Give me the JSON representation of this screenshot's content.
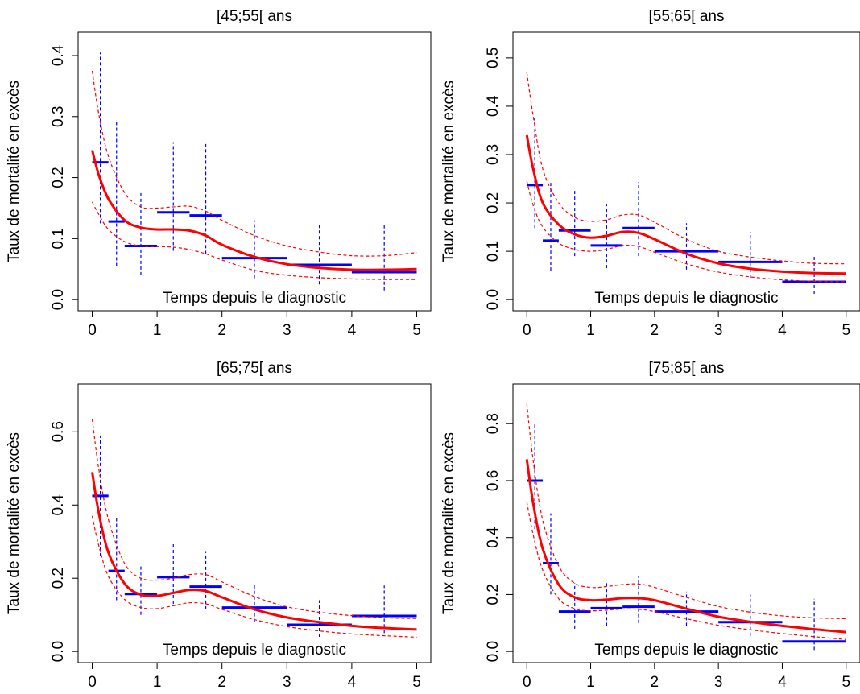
{
  "chart_data": [
    {
      "type": "line",
      "title": "[45;55[ ans",
      "ylabel": "Taux de mortalité en excès",
      "xlabel": "Temps depuis le diagnostic",
      "xlim": [
        0,
        5
      ],
      "ylim": [
        0,
        0.42
      ],
      "xticks": [
        0,
        1,
        2,
        3,
        4,
        5
      ],
      "yticks": [
        0.0,
        0.1,
        0.2,
        0.3,
        0.4
      ],
      "ytick_labels": [
        "0.0",
        "0.1",
        "0.2",
        "0.3",
        "0.4"
      ],
      "fit": {
        "x": [
          0,
          0.1,
          0.25,
          0.5,
          0.75,
          1,
          1.25,
          1.5,
          1.75,
          2,
          2.5,
          3,
          3.5,
          4,
          4.5,
          5
        ],
        "y": [
          0.245,
          0.205,
          0.165,
          0.13,
          0.118,
          0.115,
          0.115,
          0.113,
          0.105,
          0.09,
          0.07,
          0.058,
          0.052,
          0.049,
          0.049,
          0.05
        ]
      },
      "ci_upper": {
        "x": [
          0,
          0.1,
          0.25,
          0.5,
          0.75,
          1,
          1.25,
          1.5,
          1.75,
          2,
          2.5,
          3,
          3.5,
          4,
          4.5,
          5
        ],
        "y": [
          0.375,
          0.305,
          0.235,
          0.175,
          0.152,
          0.15,
          0.152,
          0.153,
          0.145,
          0.13,
          0.105,
          0.088,
          0.078,
          0.072,
          0.072,
          0.077
        ]
      },
      "ci_lower": {
        "x": [
          0,
          0.1,
          0.25,
          0.5,
          0.75,
          1,
          1.25,
          1.5,
          1.75,
          2,
          2.5,
          3,
          3.5,
          4,
          4.5,
          5
        ],
        "y": [
          0.16,
          0.14,
          0.115,
          0.095,
          0.088,
          0.087,
          0.086,
          0.082,
          0.075,
          0.065,
          0.048,
          0.04,
          0.036,
          0.034,
          0.033,
          0.033
        ]
      },
      "intervals": [
        {
          "x0": 0,
          "x1": 0.25,
          "xmid": 0.125,
          "y": 0.225,
          "lo": 0.125,
          "hi": 0.405
        },
        {
          "x0": 0.25,
          "x1": 0.5,
          "xmid": 0.375,
          "y": 0.128,
          "lo": 0.055,
          "hi": 0.295
        },
        {
          "x0": 0.5,
          "x1": 1,
          "xmid": 0.75,
          "y": 0.088,
          "lo": 0.04,
          "hi": 0.178
        },
        {
          "x0": 1,
          "x1": 1.5,
          "xmid": 1.25,
          "y": 0.143,
          "lo": 0.08,
          "hi": 0.258
        },
        {
          "x0": 1.5,
          "x1": 2,
          "xmid": 1.75,
          "y": 0.138,
          "lo": 0.075,
          "hi": 0.255
        },
        {
          "x0": 2,
          "x1": 3,
          "xmid": 2.5,
          "y": 0.068,
          "lo": 0.035,
          "hi": 0.13
        },
        {
          "x0": 3,
          "x1": 4,
          "xmid": 3.5,
          "y": 0.057,
          "lo": 0.025,
          "hi": 0.125
        },
        {
          "x0": 4,
          "x1": 5,
          "xmid": 4.5,
          "y": 0.045,
          "lo": 0.015,
          "hi": 0.122
        }
      ]
    },
    {
      "type": "line",
      "title": "[55;65[ ans",
      "ylabel": "Taux de mortalité en excès",
      "xlabel": "Temps depuis le diagnostic",
      "xlim": [
        0,
        5
      ],
      "ylim": [
        0,
        0.53
      ],
      "xticks": [
        0,
        1,
        2,
        3,
        4,
        5
      ],
      "yticks": [
        0.0,
        0.1,
        0.2,
        0.3,
        0.4,
        0.5
      ],
      "ytick_labels": [
        "0.0",
        "0.1",
        "0.2",
        "0.3",
        "0.4",
        "0.5"
      ],
      "fit": {
        "x": [
          0,
          0.1,
          0.25,
          0.5,
          0.75,
          1,
          1.25,
          1.5,
          1.75,
          2,
          2.5,
          3,
          3.5,
          4,
          4.5,
          5
        ],
        "y": [
          0.34,
          0.27,
          0.2,
          0.155,
          0.135,
          0.128,
          0.132,
          0.14,
          0.138,
          0.125,
          0.095,
          0.075,
          0.064,
          0.058,
          0.055,
          0.054
        ]
      },
      "ci_upper": {
        "x": [
          0,
          0.1,
          0.25,
          0.5,
          0.75,
          1,
          1.25,
          1.5,
          1.75,
          2,
          2.5,
          3,
          3.5,
          4,
          4.5,
          5
        ],
        "y": [
          0.47,
          0.38,
          0.27,
          0.2,
          0.17,
          0.162,
          0.165,
          0.175,
          0.175,
          0.16,
          0.125,
          0.1,
          0.088,
          0.08,
          0.075,
          0.074
        ]
      },
      "ci_lower": {
        "x": [
          0,
          0.1,
          0.25,
          0.5,
          0.75,
          1,
          1.25,
          1.5,
          1.75,
          2,
          2.5,
          3,
          3.5,
          4,
          4.5,
          5
        ],
        "y": [
          0.245,
          0.195,
          0.15,
          0.117,
          0.104,
          0.1,
          0.104,
          0.112,
          0.11,
          0.098,
          0.074,
          0.057,
          0.047,
          0.041,
          0.038,
          0.037
        ]
      },
      "intervals": [
        {
          "x0": 0,
          "x1": 0.25,
          "xmid": 0.125,
          "y": 0.237,
          "lo": 0.148,
          "hi": 0.38
        },
        {
          "x0": 0.25,
          "x1": 0.5,
          "xmid": 0.375,
          "y": 0.122,
          "lo": 0.06,
          "hi": 0.245
        },
        {
          "x0": 0.5,
          "x1": 1,
          "xmid": 0.75,
          "y": 0.143,
          "lo": 0.09,
          "hi": 0.225
        },
        {
          "x0": 1,
          "x1": 1.5,
          "xmid": 1.25,
          "y": 0.112,
          "lo": 0.065,
          "hi": 0.198
        },
        {
          "x0": 1.5,
          "x1": 2,
          "xmid": 1.75,
          "y": 0.148,
          "lo": 0.09,
          "hi": 0.243
        },
        {
          "x0": 2,
          "x1": 3,
          "xmid": 2.5,
          "y": 0.1,
          "lo": 0.062,
          "hi": 0.158
        },
        {
          "x0": 3,
          "x1": 4,
          "xmid": 3.5,
          "y": 0.078,
          "lo": 0.045,
          "hi": 0.14
        },
        {
          "x0": 4,
          "x1": 5,
          "xmid": 4.5,
          "y": 0.037,
          "lo": 0.012,
          "hi": 0.095
        }
      ]
    },
    {
      "type": "line",
      "title": "[65;75[ ans",
      "ylabel": "Taux de mortalité en excès",
      "xlabel": "Temps depuis le diagnostic",
      "xlim": [
        0,
        5
      ],
      "ylim": [
        0,
        0.7
      ],
      "xticks": [
        0,
        1,
        2,
        3,
        4,
        5
      ],
      "yticks": [
        0.0,
        0.2,
        0.4,
        0.6
      ],
      "ytick_labels": [
        "0.0",
        "0.2",
        "0.4",
        "0.6"
      ],
      "fit": {
        "x": [
          0,
          0.1,
          0.25,
          0.5,
          0.75,
          1,
          1.25,
          1.5,
          1.75,
          2,
          2.5,
          3,
          3.5,
          4,
          4.5,
          5
        ],
        "y": [
          0.49,
          0.38,
          0.27,
          0.185,
          0.155,
          0.152,
          0.16,
          0.168,
          0.165,
          0.148,
          0.115,
          0.093,
          0.08,
          0.07,
          0.064,
          0.06
        ]
      },
      "ci_upper": {
        "x": [
          0,
          0.1,
          0.25,
          0.5,
          0.75,
          1,
          1.25,
          1.5,
          1.75,
          2,
          2.5,
          3,
          3.5,
          4,
          4.5,
          5
        ],
        "y": [
          0.635,
          0.5,
          0.36,
          0.24,
          0.2,
          0.195,
          0.2,
          0.21,
          0.21,
          0.19,
          0.15,
          0.122,
          0.107,
          0.098,
          0.092,
          0.09
        ]
      },
      "ci_lower": {
        "x": [
          0,
          0.1,
          0.25,
          0.5,
          0.75,
          1,
          1.25,
          1.5,
          1.75,
          2,
          2.5,
          3,
          3.5,
          4,
          4.5,
          5
        ],
        "y": [
          0.37,
          0.29,
          0.205,
          0.142,
          0.12,
          0.117,
          0.125,
          0.133,
          0.13,
          0.115,
          0.087,
          0.068,
          0.056,
          0.048,
          0.043,
          0.039
        ]
      },
      "intervals": [
        {
          "x0": 0,
          "x1": 0.25,
          "xmid": 0.125,
          "y": 0.425,
          "lo": 0.26,
          "hi": 0.59
        },
        {
          "x0": 0.25,
          "x1": 0.5,
          "xmid": 0.375,
          "y": 0.22,
          "lo": 0.14,
          "hi": 0.365
        },
        {
          "x0": 0.5,
          "x1": 1,
          "xmid": 0.75,
          "y": 0.157,
          "lo": 0.1,
          "hi": 0.238
        },
        {
          "x0": 1,
          "x1": 1.5,
          "xmid": 1.25,
          "y": 0.203,
          "lo": 0.13,
          "hi": 0.295
        },
        {
          "x0": 1.5,
          "x1": 2,
          "xmid": 1.75,
          "y": 0.177,
          "lo": 0.115,
          "hi": 0.272
        },
        {
          "x0": 2,
          "x1": 3,
          "xmid": 2.5,
          "y": 0.12,
          "lo": 0.08,
          "hi": 0.185
        },
        {
          "x0": 3,
          "x1": 4,
          "xmid": 3.5,
          "y": 0.073,
          "lo": 0.04,
          "hi": 0.14
        },
        {
          "x0": 4,
          "x1": 5,
          "xmid": 4.5,
          "y": 0.097,
          "lo": 0.05,
          "hi": 0.18
        }
      ]
    },
    {
      "type": "line",
      "title": "[75;85[ ans",
      "ylabel": "Taux de mortalité en excès",
      "xlabel": "Temps depuis le diagnostic",
      "xlim": [
        0,
        5
      ],
      "ylim": [
        0,
        0.9
      ],
      "xticks": [
        0,
        1,
        2,
        3,
        4,
        5
      ],
      "yticks": [
        0.0,
        0.2,
        0.4,
        0.6,
        0.8
      ],
      "ytick_labels": [
        "0.0",
        "0.2",
        "0.4",
        "0.6",
        "0.8"
      ],
      "fit": {
        "x": [
          0,
          0.1,
          0.25,
          0.5,
          0.75,
          1,
          1.25,
          1.5,
          1.75,
          2,
          2.5,
          3,
          3.5,
          4,
          4.5,
          5
        ],
        "y": [
          0.675,
          0.52,
          0.36,
          0.235,
          0.19,
          0.18,
          0.182,
          0.187,
          0.187,
          0.18,
          0.15,
          0.122,
          0.104,
          0.09,
          0.078,
          0.068
        ]
      },
      "ci_upper": {
        "x": [
          0,
          0.1,
          0.25,
          0.5,
          0.75,
          1,
          1.25,
          1.5,
          1.75,
          2,
          2.5,
          3,
          3.5,
          4,
          4.5,
          5
        ],
        "y": [
          0.87,
          0.67,
          0.46,
          0.3,
          0.24,
          0.225,
          0.228,
          0.235,
          0.237,
          0.225,
          0.19,
          0.158,
          0.138,
          0.125,
          0.118,
          0.115
        ]
      },
      "ci_lower": {
        "x": [
          0,
          0.1,
          0.25,
          0.5,
          0.75,
          1,
          1.25,
          1.5,
          1.75,
          2,
          2.5,
          3,
          3.5,
          4,
          4.5,
          5
        ],
        "y": [
          0.525,
          0.41,
          0.285,
          0.185,
          0.15,
          0.143,
          0.145,
          0.149,
          0.148,
          0.14,
          0.115,
          0.092,
          0.076,
          0.063,
          0.052,
          0.042
        ]
      },
      "intervals": [
        {
          "x0": 0,
          "x1": 0.25,
          "xmid": 0.125,
          "y": 0.6,
          "lo": 0.43,
          "hi": 0.8
        },
        {
          "x0": 0.25,
          "x1": 0.5,
          "xmid": 0.375,
          "y": 0.31,
          "lo": 0.2,
          "hi": 0.485
        },
        {
          "x0": 0.5,
          "x1": 1,
          "xmid": 0.75,
          "y": 0.14,
          "lo": 0.08,
          "hi": 0.24
        },
        {
          "x0": 1,
          "x1": 1.5,
          "xmid": 1.25,
          "y": 0.152,
          "lo": 0.09,
          "hi": 0.245
        },
        {
          "x0": 1.5,
          "x1": 2,
          "xmid": 1.75,
          "y": 0.157,
          "lo": 0.1,
          "hi": 0.265
        },
        {
          "x0": 2,
          "x1": 3,
          "xmid": 2.5,
          "y": 0.14,
          "lo": 0.09,
          "hi": 0.21
        },
        {
          "x0": 3,
          "x1": 4,
          "xmid": 3.5,
          "y": 0.103,
          "lo": 0.055,
          "hi": 0.2
        },
        {
          "x0": 4,
          "x1": 5,
          "xmid": 4.5,
          "y": 0.035,
          "lo": 0.005,
          "hi": 0.185
        }
      ]
    }
  ],
  "colors": {
    "fit": "#ff0000",
    "ci": "#ff0000",
    "observed": "#0000ff"
  }
}
